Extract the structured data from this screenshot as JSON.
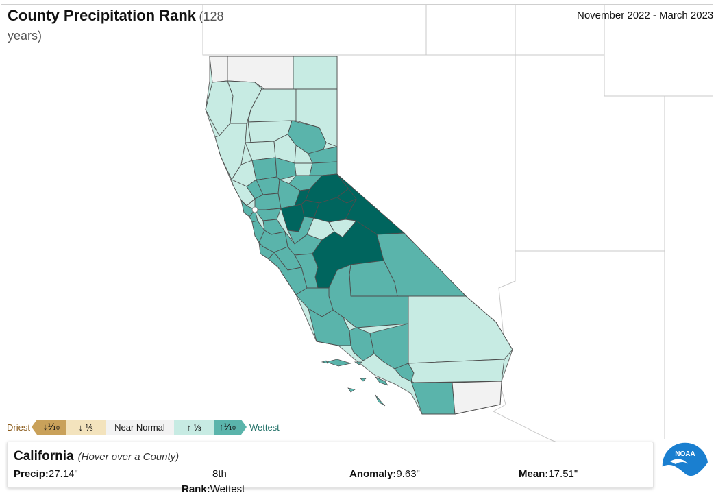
{
  "title": "County Precipitation Rank",
  "subtitle": "(128 years)",
  "date_range": "November 2022 - March 2023",
  "colors": {
    "near_normal": "#f2f2f2",
    "above_third": "#c7ebe3",
    "above_tenth": "#5ab4ab",
    "wettest": "#00655e",
    "below_third": "#f3e3bd",
    "below_tenth": "#c9a15a",
    "county_border": "#4d4d4d",
    "state_border": "#b8b8b8"
  },
  "legend": {
    "driest_label": "Driest",
    "wettest_label": "Wettest",
    "items": [
      {
        "key": "below_tenth",
        "label": "↓⅒"
      },
      {
        "key": "below_third",
        "label": "↓ ⅓"
      },
      {
        "key": "near_normal",
        "label": "Near Normal"
      },
      {
        "key": "above_third",
        "label": "↑ ⅓"
      },
      {
        "key": "above_tenth",
        "label": "↑⅒"
      }
    ]
  },
  "info": {
    "name": "California",
    "hint": "(Hover over a County)",
    "precip_label": "Precip:",
    "precip_value": "27.14\"",
    "rank_value": "8th",
    "rank_label": "Rank:",
    "rank_category": "Wettest",
    "anomaly_label": "Anomaly:",
    "anomaly_value": "9.63\"",
    "mean_label": "Mean:",
    "mean_value": "17.51\""
  },
  "logo": {
    "text": "NOAA"
  }
}
